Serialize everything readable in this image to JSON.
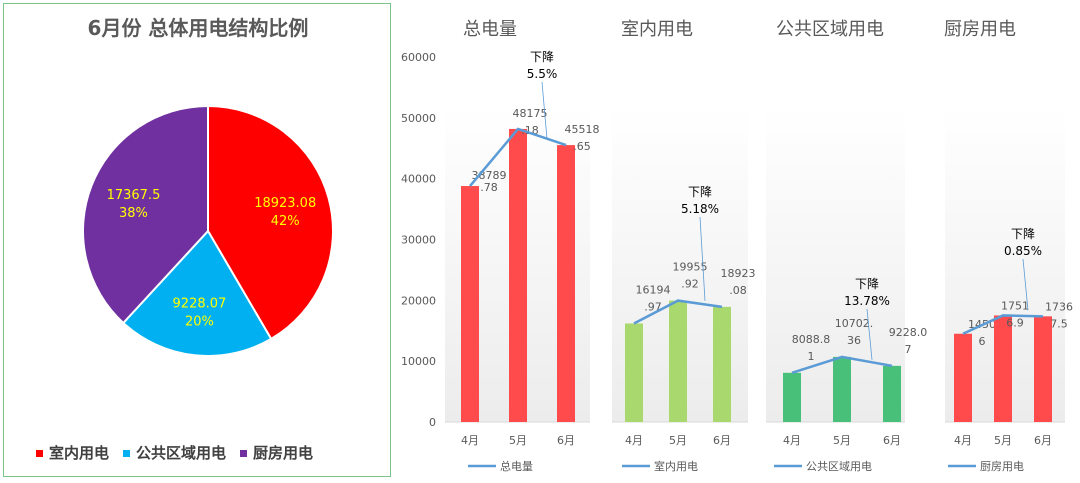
{
  "chart_data": [
    {
      "type": "pie",
      "title": "6月份 总体用电结构比例",
      "slices": [
        {
          "name": "室内用电",
          "value": 18923.08,
          "label": "18923.08",
          "pct": "42%",
          "color": "#ff0000"
        },
        {
          "name": "公共区域用电",
          "value": 9228.07,
          "label": "9228.07",
          "pct": "20%",
          "color": "#00b0f0"
        },
        {
          "name": "厨房用电",
          "value": 17367.5,
          "label": "17367.5",
          "pct": "38%",
          "color": "#7030a0"
        }
      ],
      "legend": "bottom"
    },
    {
      "type": "bar+line",
      "ylim": [
        0,
        60000
      ],
      "yticks": [
        "0",
        "10000",
        "20000",
        "30000",
        "40000",
        "50000",
        "60000"
      ],
      "categories": [
        "4月",
        "5月",
        "6月"
      ],
      "panels": [
        {
          "title": "总电量",
          "legend": "总电量",
          "color": "#ff4b4b",
          "values": [
            38789.78,
            48175.18,
            45518.65
          ],
          "labels": [
            [
              "38789",
              ".78"
            ],
            [
              "48175",
              ".18"
            ],
            [
              "45518",
              ".65"
            ]
          ],
          "note": [
            "下降",
            "5.5%"
          ]
        },
        {
          "title": "室内用电",
          "legend": "室内用电",
          "color": "#a9d86e",
          "values": [
            16194.97,
            19955.92,
            18923.08
          ],
          "labels": [
            [
              "16194",
              ".97"
            ],
            [
              "19955",
              ".92"
            ],
            [
              "18923",
              ".08"
            ]
          ],
          "note": [
            "下降",
            "5.18%"
          ]
        },
        {
          "title": "公共区域用电",
          "legend": "公共区域用电",
          "color": "#48c07a",
          "values": [
            8088.81,
            10702.36,
            9228.07
          ],
          "labels": [
            [
              "8088.8",
              "1"
            ],
            [
              "10702.",
              "36"
            ],
            [
              "9228.0",
              "7"
            ]
          ],
          "note": [
            "下降",
            "13.78%"
          ]
        },
        {
          "title": "厨房用电",
          "legend": "厨房用电",
          "color": "#ff4b4b",
          "values": [
            14506,
            17516.9,
            17367.5
          ],
          "labels": [
            [
              "1450",
              "6"
            ],
            [
              "1751",
              "6.9"
            ],
            [
              "1736",
              "7.5"
            ]
          ],
          "note": [
            "下降",
            "0.85%"
          ]
        }
      ],
      "line_color": "#5b9bd5"
    }
  ]
}
